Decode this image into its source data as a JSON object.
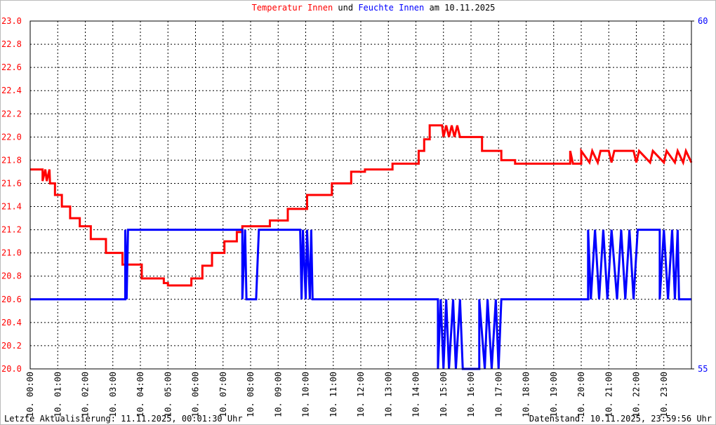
{
  "chart_data": {
    "type": "line",
    "title": [
      "Temperatur Innen",
      "und",
      "Feuchte Innen",
      "am 10.11.2025"
    ],
    "footer": {
      "left": "Letzte Aktualisierung: 11.11.2025, 00:01:30 Uhr",
      "right": "Datenstand: 10.11.2025, 23:59:56 Uhr"
    },
    "grid": true,
    "xlim": [
      0,
      24
    ],
    "xticks": [
      {
        "value": 0,
        "label": "10. 00:00"
      },
      {
        "value": 1,
        "label": "10. 01:00"
      },
      {
        "value": 2,
        "label": "10. 02:00"
      },
      {
        "value": 3,
        "label": "10. 03:00"
      },
      {
        "value": 4,
        "label": "10. 04:00"
      },
      {
        "value": 5,
        "label": "10. 05:00"
      },
      {
        "value": 6,
        "label": "10. 06:00"
      },
      {
        "value": 7,
        "label": "10. 07:00"
      },
      {
        "value": 8,
        "label": "10. 08:00"
      },
      {
        "value": 9,
        "label": "10. 09:00"
      },
      {
        "value": 10,
        "label": "10. 10:00"
      },
      {
        "value": 11,
        "label": "10. 11:00"
      },
      {
        "value": 12,
        "label": "10. 12:00"
      },
      {
        "value": 13,
        "label": "10. 13:00"
      },
      {
        "value": 14,
        "label": "10. 14:00"
      },
      {
        "value": 15,
        "label": "10. 15:00"
      },
      {
        "value": 16,
        "label": "10. 16:00"
      },
      {
        "value": 17,
        "label": "10. 17:00"
      },
      {
        "value": 18,
        "label": "10. 18:00"
      },
      {
        "value": 19,
        "label": "10. 19:00"
      },
      {
        "value": 20,
        "label": "10. 20:00"
      },
      {
        "value": 21,
        "label": "10. 21:00"
      },
      {
        "value": 22,
        "label": "10. 22:00"
      },
      {
        "value": 23,
        "label": "10. 23:00"
      }
    ],
    "ylim": [
      20,
      23
    ],
    "yticks": [
      {
        "value": 20,
        "label": "20.0"
      },
      20.2,
      20.4,
      20.6,
      20.8,
      {
        "value": 21,
        "label": "21.0"
      },
      21.2,
      21.4,
      21.6,
      21.8,
      {
        "value": 22,
        "label": "22.0"
      },
      22.2,
      22.4,
      22.6,
      22.8,
      {
        "value": 23,
        "label": "23.0"
      }
    ],
    "y2lim": [
      55,
      60
    ],
    "y2ticks": [
      55,
      60
    ],
    "series": [
      {
        "name": "Temperatur Innen",
        "color": "#ff0000",
        "x": [
          0,
          0.45,
          0.45,
          0.55,
          0.6,
          0.7,
          0.72,
          0.9,
          0.9,
          1.15,
          1.15,
          1.45,
          1.45,
          1.8,
          1.8,
          2.2,
          2.2,
          2.75,
          2.75,
          3.35,
          3.35,
          4.05,
          4.05,
          4.85,
          4.85,
          5.0,
          5.0,
          5.85,
          5.85,
          6.25,
          6.25,
          6.6,
          6.6,
          7.05,
          7.05,
          7.5,
          7.5,
          7.7,
          7.7,
          8.7,
          8.7,
          9.35,
          9.35,
          10.05,
          10.05,
          10.95,
          10.95,
          11.65,
          11.65,
          12.15,
          12.15,
          13.15,
          13.15,
          14.1,
          14.1,
          14.3,
          14.3,
          14.5,
          14.5,
          14.95,
          15.0,
          15.1,
          15.2,
          15.3,
          15.4,
          15.5,
          15.6,
          16.4,
          16.4,
          17.1,
          17.1,
          17.6,
          17.6,
          19.6,
          19.6,
          19.7,
          20.0,
          20.0,
          20.3,
          20.4,
          20.6,
          20.7,
          21.0,
          21.1,
          21.2,
          21.9,
          22.0,
          22.1,
          22.5,
          22.6,
          23.0,
          23.1,
          23.4,
          23.5,
          23.7,
          23.8,
          24
        ],
        "values": [
          21.72,
          21.72,
          21.62,
          21.72,
          21.62,
          21.72,
          21.6,
          21.6,
          21.5,
          21.5,
          21.4,
          21.4,
          21.3,
          21.3,
          21.23,
          21.23,
          21.12,
          21.12,
          21.0,
          21.0,
          20.9,
          20.9,
          20.78,
          20.78,
          20.74,
          20.74,
          20.72,
          20.72,
          20.78,
          20.78,
          20.89,
          20.89,
          21.0,
          21.0,
          21.1,
          21.1,
          21.18,
          21.18,
          21.23,
          21.23,
          21.28,
          21.28,
          21.38,
          21.38,
          21.5,
          21.5,
          21.6,
          21.6,
          21.7,
          21.7,
          21.72,
          21.72,
          21.77,
          21.77,
          21.88,
          21.88,
          21.98,
          21.98,
          22.1,
          22.1,
          22.0,
          22.1,
          22.0,
          22.1,
          22.0,
          22.1,
          22.0,
          22.0,
          21.88,
          21.88,
          21.8,
          21.8,
          21.77,
          21.77,
          21.88,
          21.77,
          21.77,
          21.88,
          21.78,
          21.88,
          21.78,
          21.88,
          21.88,
          21.78,
          21.88,
          21.88,
          21.78,
          21.88,
          21.78,
          21.88,
          21.78,
          21.88,
          21.78,
          21.88,
          21.78,
          21.88,
          21.78
        ]
      },
      {
        "name": "Feuchte Innen",
        "color": "#0000ff",
        "axis": "y2",
        "x": [
          0,
          3.45,
          3.45,
          3.5,
          3.55,
          7.7,
          7.7,
          7.8,
          7.85,
          8.2,
          8.3,
          9.8,
          9.85,
          9.9,
          10.0,
          10.05,
          10.15,
          10.2,
          10.25,
          14.8,
          14.8,
          14.9,
          15.0,
          15.1,
          15.2,
          15.35,
          15.45,
          15.6,
          15.7,
          16.3,
          16.3,
          16.5,
          16.6,
          16.75,
          16.9,
          17.0,
          17.1,
          20.25,
          20.25,
          20.35,
          20.5,
          20.65,
          20.8,
          20.95,
          21.1,
          21.3,
          21.45,
          21.6,
          21.75,
          21.9,
          22.05,
          22.85,
          22.85,
          23.0,
          23.15,
          23.3,
          23.4,
          23.5,
          23.55,
          24
        ],
        "values": [
          56,
          56,
          57,
          56,
          57,
          57,
          56,
          57,
          56,
          56,
          57,
          57,
          56,
          57,
          56,
          57,
          56,
          57,
          56,
          56,
          55,
          56,
          55,
          56,
          55,
          56,
          55,
          56,
          55,
          55,
          56,
          55,
          56,
          55,
          56,
          55,
          56,
          56,
          57,
          56,
          57,
          56,
          57,
          56,
          57,
          56,
          57,
          56,
          57,
          56,
          57,
          57,
          56,
          57,
          56,
          57,
          56,
          57,
          56,
          56
        ]
      }
    ]
  }
}
